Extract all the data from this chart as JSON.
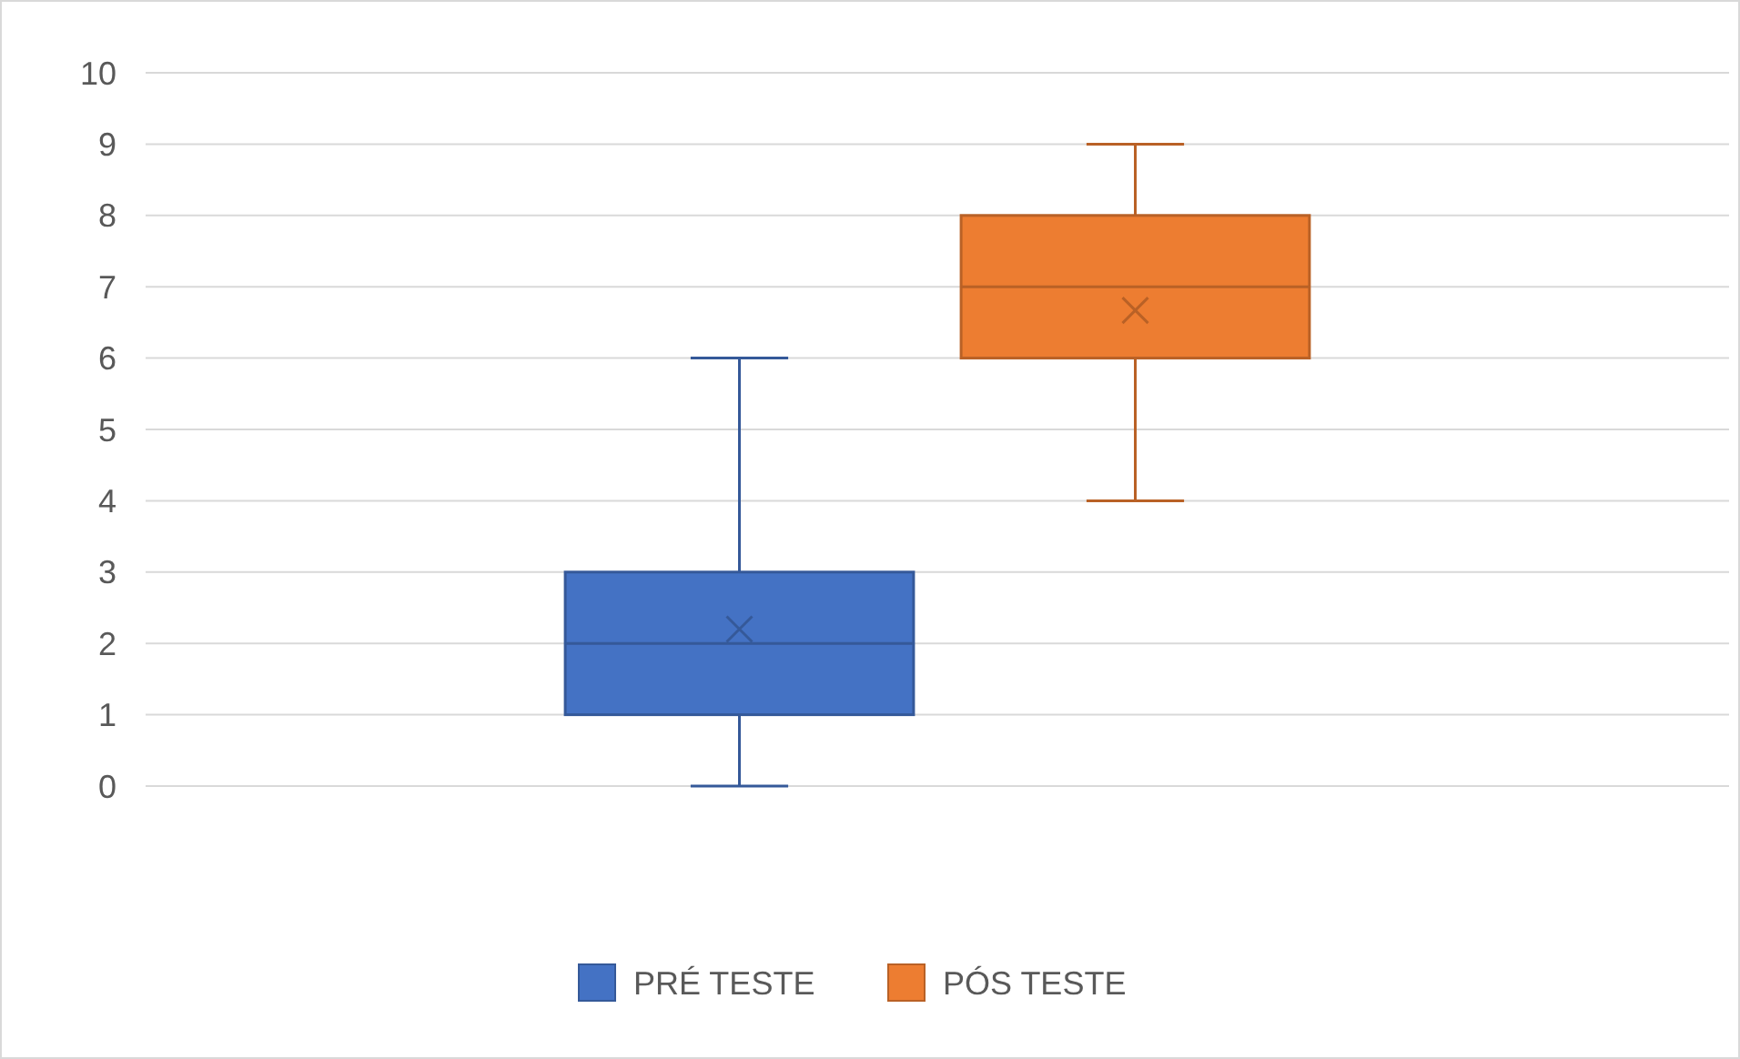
{
  "chart_data": {
    "type": "box",
    "categories": [
      null
    ],
    "ylim": [
      0,
      10
    ],
    "yticks": [
      0,
      1,
      2,
      3,
      4,
      5,
      6,
      7,
      8,
      9,
      10
    ],
    "grid": "y",
    "legend": "bottom",
    "tick_labels": "y",
    "series": [
      {
        "name": "PRÉ TESTE",
        "color": "#4472c4",
        "boxes": [
          {
            "low": 0,
            "q1": 1,
            "median": 2,
            "q3": 3,
            "high": 6,
            "mean": 2.2
          }
        ]
      },
      {
        "name": "PÓS TESTE",
        "color": "#ed7d31",
        "boxes": [
          {
            "low": 4,
            "q1": 6,
            "median": 7,
            "q3": 8,
            "high": 9,
            "mean": 6.67
          }
        ]
      }
    ]
  }
}
